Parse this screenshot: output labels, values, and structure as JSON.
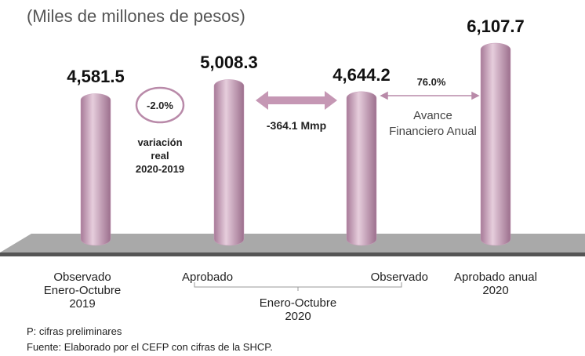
{
  "chart_data": {
    "type": "bar",
    "subtitle": "(Miles de millones de pesos)",
    "categories": [
      "Observado\nEnero-Octubre\n2019",
      "Aprobado",
      "Observado",
      "Aprobado anual\n2020"
    ],
    "values": [
      4581.5,
      5008.3,
      4644.2,
      6107.7
    ],
    "value_labels": [
      "4,581.5",
      "5,008.3",
      "4,644.2",
      "6,107.7"
    ],
    "color": "#c9a0bb",
    "group_label": "Enero-Octubre\n2020",
    "annotations": [
      "-2.0%",
      "variación\nreal\n2020-2019",
      "-364.1 Mmp",
      "76.0%",
      "Avance\nFinanciero Anual"
    ],
    "notes": [
      "P: cifras preliminares",
      "Fuente: Elaborado por el CEFP con cifras de la SHCP."
    ]
  }
}
